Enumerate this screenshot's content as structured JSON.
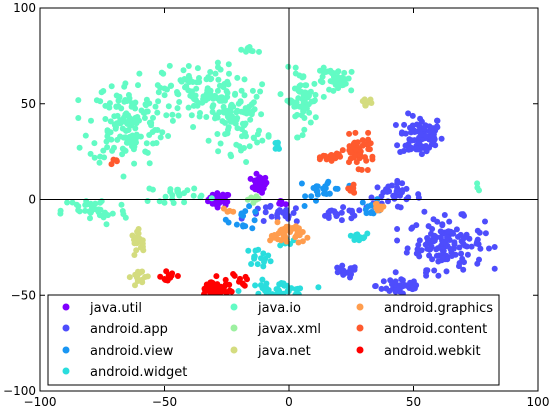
{
  "chart_data": {
    "type": "scatter",
    "title": "",
    "xlabel": "",
    "ylabel": "",
    "xlim": [
      -100,
      100
    ],
    "ylim": [
      -100,
      100
    ],
    "xticks": [
      -100,
      -50,
      0,
      50,
      100
    ],
    "yticks": [
      -100,
      -50,
      0,
      50,
      100
    ],
    "grid": false,
    "reference_lines": {
      "x": 0,
      "y": 0
    },
    "legend": {
      "position": "lower-center",
      "columns": 3
    },
    "series": [
      {
        "name": "java.util",
        "color": "#7f00ff",
        "clusters": [
          {
            "c": [
              -28,
              0
            ],
            "r": [
              4,
              3
            ],
            "n": 45
          },
          {
            "c": [
              -12,
              8
            ],
            "r": [
              3,
              4
            ],
            "n": 30
          },
          {
            "c": [
              -3,
              -2
            ],
            "r": [
              1.5,
              1.5
            ],
            "n": 6
          }
        ]
      },
      {
        "name": "android.app",
        "color": "#4e4dfc",
        "clusters": [
          {
            "c": [
              53,
              33
            ],
            "r": [
              8,
              10
            ],
            "n": 90
          },
          {
            "c": [
              63,
              -23
            ],
            "r": [
              14,
              12
            ],
            "n": 130
          },
          {
            "c": [
              42,
              2
            ],
            "r": [
              10,
              6
            ],
            "n": 35
          },
          {
            "c": [
              45,
              -45
            ],
            "r": [
              9,
              5
            ],
            "n": 40
          },
          {
            "c": [
              22,
              -38
            ],
            "r": [
              5,
              3
            ],
            "n": 20
          },
          {
            "c": [
              -5,
              -8
            ],
            "r": [
              10,
              4
            ],
            "n": 25
          },
          {
            "c": [
              20,
              -8
            ],
            "r": [
              10,
              3
            ],
            "n": 20
          }
        ]
      },
      {
        "name": "android.view",
        "color": "#1996f3",
        "clusters": [
          {
            "c": [
              15,
              5
            ],
            "r": [
              7,
              6
            ],
            "n": 25
          },
          {
            "c": [
              33,
              -4
            ],
            "r": [
              4,
              4
            ],
            "n": 12
          },
          {
            "c": [
              -18,
              -10
            ],
            "r": [
              6,
              5
            ],
            "n": 14
          }
        ]
      },
      {
        "name": "android.widget",
        "color": "#2adddd",
        "clusters": [
          {
            "c": [
              -5,
              -48
            ],
            "r": [
              12,
              5
            ],
            "n": 55
          },
          {
            "c": [
              -12,
              -30
            ],
            "r": [
              5,
              4
            ],
            "n": 16
          },
          {
            "c": [
              -2,
              -22
            ],
            "r": [
              3,
              3
            ],
            "n": 8
          },
          {
            "c": [
              27,
              -20
            ],
            "r": [
              4,
              2
            ],
            "n": 14
          },
          {
            "c": [
              -5,
              27
            ],
            "r": [
              2,
              3
            ],
            "n": 6
          }
        ]
      },
      {
        "name": "java.io",
        "color": "#62fbc4",
        "clusters": [
          {
            "c": [
              -78,
              -6
            ],
            "r": [
              12,
              7
            ],
            "n": 40
          },
          {
            "c": [
              -65,
              40
            ],
            "r": [
              14,
              20
            ],
            "n": 150
          },
          {
            "c": [
              -35,
              55
            ],
            "r": [
              14,
              14
            ],
            "n": 110
          },
          {
            "c": [
              -20,
              42
            ],
            "r": [
              10,
              16
            ],
            "n": 80
          },
          {
            "c": [
              5,
              52
            ],
            "r": [
              6,
              14
            ],
            "n": 60
          },
          {
            "c": [
              20,
              62
            ],
            "r": [
              8,
              6
            ],
            "n": 40
          },
          {
            "c": [
              -15,
              78
            ],
            "r": [
              3,
              2
            ],
            "n": 8
          },
          {
            "c": [
              -45,
              3
            ],
            "r": [
              10,
              4
            ],
            "n": 25
          },
          {
            "c": [
              76,
              6
            ],
            "r": [
              2,
              2
            ],
            "n": 3
          }
        ]
      },
      {
        "name": "javax.xml",
        "color": "#9cf0a0",
        "clusters": [
          {
            "c": [
              -15,
              0
            ],
            "r": [
              3,
              2
            ],
            "n": 8
          }
        ]
      },
      {
        "name": "java.net",
        "color": "#d4dc7f",
        "clusters": [
          {
            "c": [
              -60,
              -22
            ],
            "r": [
              3,
              5
            ],
            "n": 20
          },
          {
            "c": [
              -60,
              -40
            ],
            "r": [
              3,
              4
            ],
            "n": 18
          },
          {
            "c": [
              31,
              50
            ],
            "r": [
              2,
              3
            ],
            "n": 10
          },
          {
            "c": [
              -15,
              -55
            ],
            "r": [
              3,
              3
            ],
            "n": 8
          }
        ]
      },
      {
        "name": "android.graphics",
        "color": "#ff9d4e",
        "clusters": [
          {
            "c": [
              -1,
              -18
            ],
            "r": [
              6,
              5
            ],
            "n": 40
          },
          {
            "c": [
              36,
              -4
            ],
            "r": [
              2,
              3
            ],
            "n": 8
          },
          {
            "c": [
              -25,
              -6
            ],
            "r": [
              2,
              2
            ],
            "n": 4
          }
        ]
      },
      {
        "name": "android.content",
        "color": "#ff5a2e",
        "clusters": [
          {
            "c": [
              28,
              25
            ],
            "r": [
              6,
              7
            ],
            "n": 45
          },
          {
            "c": [
              18,
              22
            ],
            "r": [
              4,
              3
            ],
            "n": 20
          },
          {
            "c": [
              25,
              5
            ],
            "r": [
              2,
              2
            ],
            "n": 8
          },
          {
            "c": [
              -70,
              20
            ],
            "r": [
              2,
              2
            ],
            "n": 4
          }
        ]
      },
      {
        "name": "android.webkit",
        "color": "#ff0000",
        "clusters": [
          {
            "c": [
              -30,
              -47
            ],
            "r": [
              5,
              5
            ],
            "n": 55
          },
          {
            "c": [
              -48,
              -40
            ],
            "r": [
              3,
              3
            ],
            "n": 12
          },
          {
            "c": [
              -20,
              -43
            ],
            "r": [
              3,
              3
            ],
            "n": 10
          }
        ]
      }
    ]
  }
}
